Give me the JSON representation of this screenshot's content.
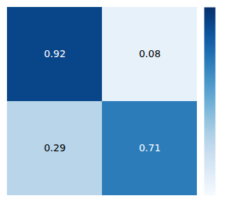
{
  "chart_data": {
    "type": "heatmap",
    "matrix": [
      [
        0.92,
        0.08
      ],
      [
        0.29,
        0.71
      ]
    ],
    "color": "Blues",
    "color_range": [
      0.0,
      1.0
    ],
    "color_ticks": [],
    "data_labels": true,
    "tick_labels": false
  }
}
